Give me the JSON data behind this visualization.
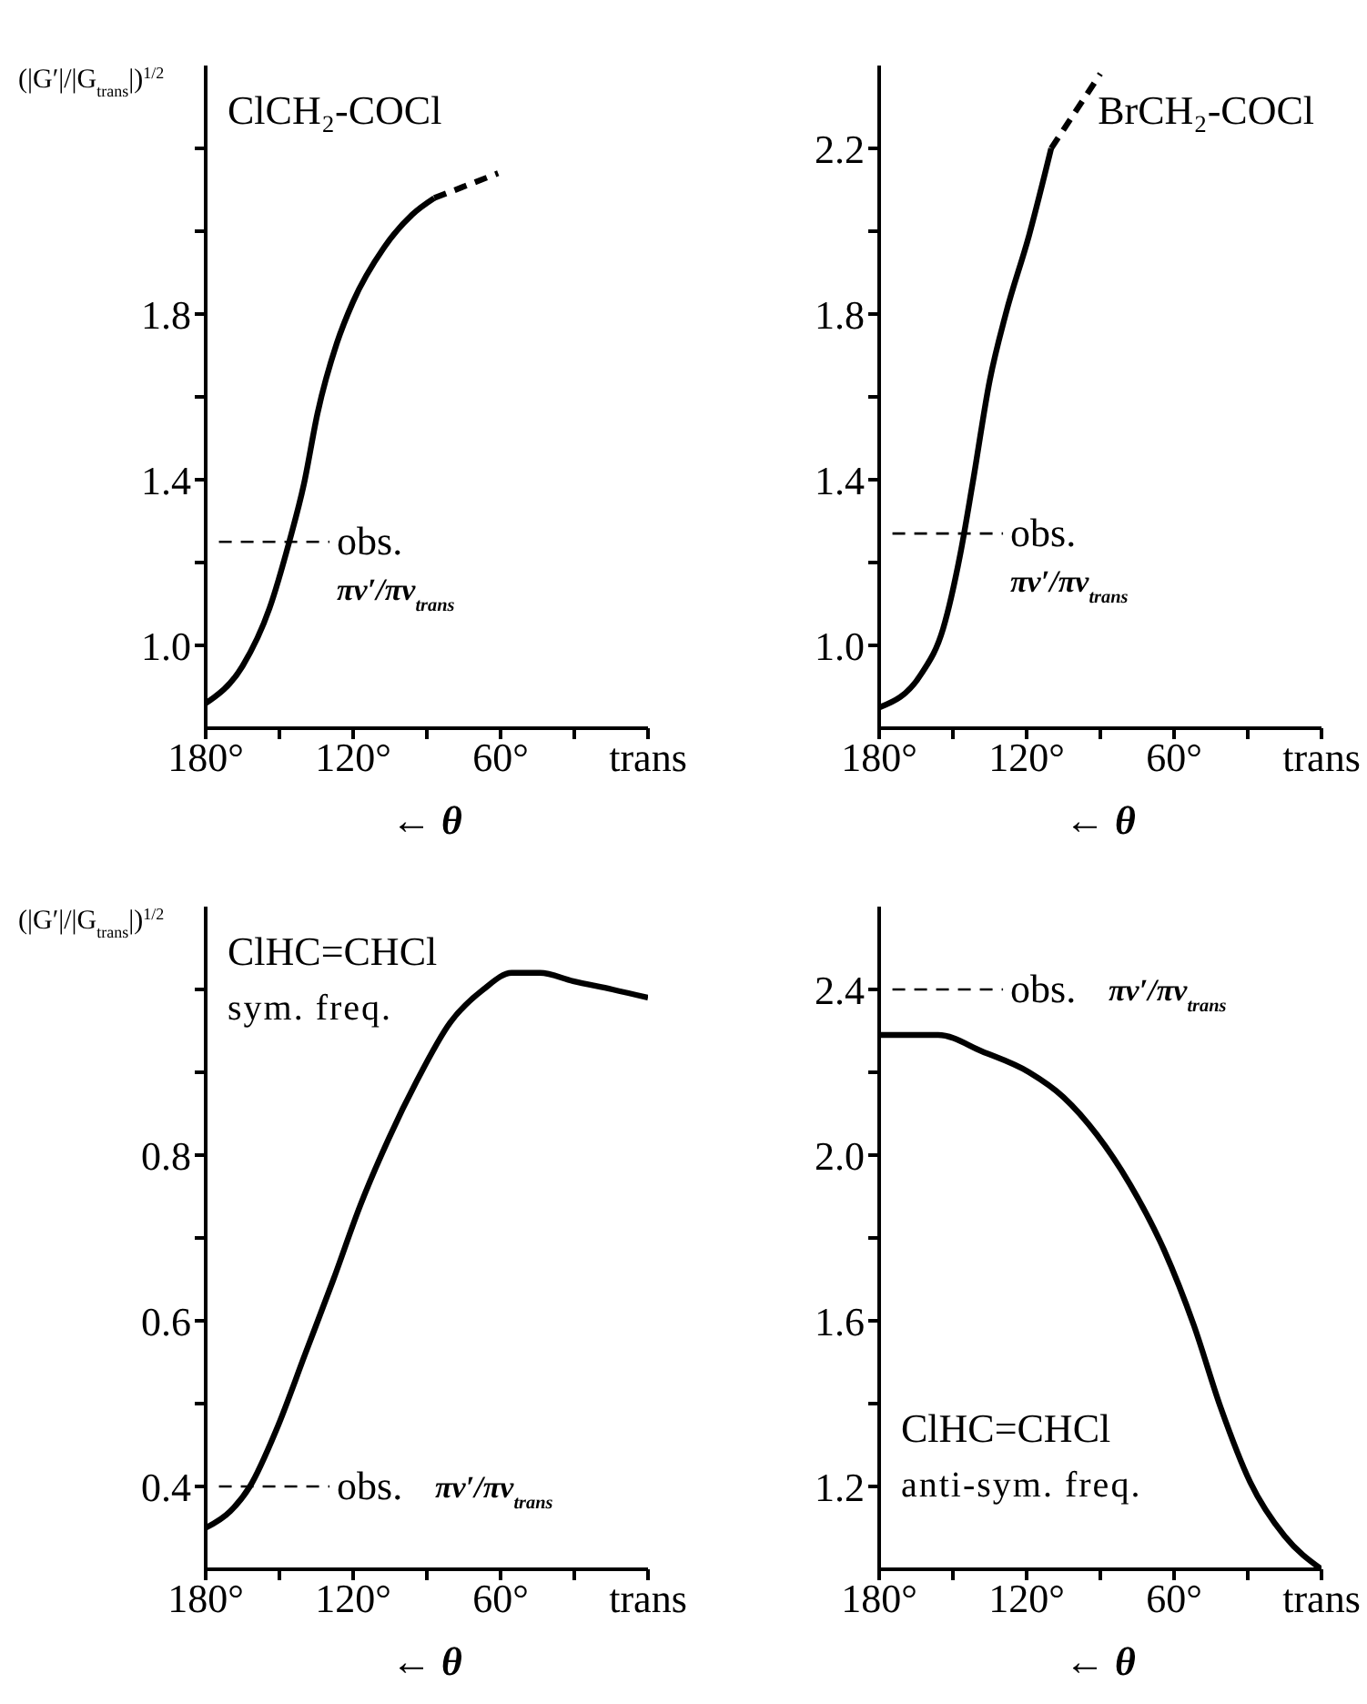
{
  "chart_data": [
    {
      "type": "line",
      "title": "ClCH₂-COCl",
      "ylabel": "(|G′|/|G$_{trans}$|)$^{1/2}$",
      "xlabel": "← θ",
      "annotations": [
        "πν′/πν$_{trans}$"
      ],
      "series": [
        {
          "color": "#000000",
          "line_style": "solid",
          "x": [
            180,
            165,
            154,
            146,
            140,
            134.5,
            126.6,
            120,
            107.5,
            96,
            87
          ],
          "values": [
            0.86,
            0.95,
            1.09,
            1.25,
            1.39,
            1.56,
            1.73,
            1.83,
            1.96,
            2.04,
            2.08
          ]
        },
        {
          "color": "#000000",
          "line_style": "dashed",
          "x": [
            87,
            61
          ],
          "values": [
            2.08,
            2.14
          ]
        }
      ],
      "xlim": [
        180,
        0
      ],
      "xticks": [
        {
          "value": 180,
          "label": "180°"
        },
        {
          "value": 150,
          "label": null
        },
        {
          "value": 120,
          "label": "120°"
        },
        {
          "value": 90,
          "label": null
        },
        {
          "value": 60,
          "label": "60°"
        },
        {
          "value": 30,
          "label": null
        },
        {
          "value": 0,
          "label": "trans"
        }
      ],
      "ylim": [
        0.8,
        2.4
      ],
      "yticks": [
        {
          "value": 1,
          "label": "1.0"
        },
        {
          "value": 1.2,
          "label": null
        },
        1.4,
        {
          "value": 1.6,
          "label": null
        },
        1.8,
        {
          "value": 2,
          "label": null
        },
        {
          "value": 2.2,
          "label": null
        }
      ],
      "ref_lines": [
        {
          "axis": "y",
          "value": 1.25,
          "label": "obs.",
          "line_style": "dashed"
        }
      ]
    },
    {
      "type": "line",
      "title": "BrCH₂-COCl",
      "xlabel": "← θ",
      "annotations": [
        "πν′/πν$_{trans}$"
      ],
      "series": [
        {
          "color": "#000000",
          "line_style": "solid",
          "x": [
            180,
            163,
            154,
            147,
            142,
            135,
            128.5,
            119,
            110
          ],
          "values": [
            0.85,
            0.93,
            1.04,
            1.22,
            1.39,
            1.64,
            1.8,
            1.99,
            2.2
          ]
        },
        {
          "color": "#000000",
          "line_style": "dashed",
          "x": [
            110,
            90
          ],
          "values": [
            2.2,
            2.38
          ]
        }
      ],
      "xlim": [
        180,
        0
      ],
      "xticks": [
        {
          "value": 180,
          "label": "180°"
        },
        {
          "value": 150,
          "label": null
        },
        {
          "value": 120,
          "label": "120°"
        },
        {
          "value": 90,
          "label": null
        },
        {
          "value": 60,
          "label": "60°"
        },
        {
          "value": 30,
          "label": null
        },
        {
          "value": 0,
          "label": "trans"
        }
      ],
      "ylim": [
        0.8,
        2.4
      ],
      "yticks": [
        {
          "value": 1,
          "label": "1.0"
        },
        {
          "value": 1.2,
          "label": null
        },
        1.4,
        {
          "value": 1.6,
          "label": null
        },
        1.8,
        {
          "value": 2,
          "label": null
        },
        2.2
      ],
      "ref_lines": [
        {
          "axis": "y",
          "value": 1.27,
          "label": "obs.",
          "line_style": "dashed"
        }
      ]
    },
    {
      "type": "line",
      "title": "ClHC=CHCl",
      "subtitle": "sym. freq.",
      "ylabel": "(|G′|/|G$_{trans}$|)$^{1/2}$",
      "xlabel": "← θ",
      "annotations": [
        "πν′/πν$_{trans}$"
      ],
      "series": [
        {
          "color": "#000000",
          "line_style": "solid",
          "x": [
            180,
            170,
            162,
            151,
            139.5,
            128,
            117,
            105.5,
            94,
            80.5,
            67,
            55.5,
            44,
            30.5,
            14.5,
            0
          ],
          "values": [
            0.35,
            0.37,
            0.4,
            0.47,
            0.56,
            0.65,
            0.74,
            0.82,
            0.89,
            0.96,
            1.0,
            1.02,
            1.02,
            1.01,
            1.0,
            0.99
          ]
        }
      ],
      "xlim": [
        180,
        0
      ],
      "xticks": [
        {
          "value": 180,
          "label": "180°"
        },
        {
          "value": 150,
          "label": null
        },
        {
          "value": 120,
          "label": "120°"
        },
        {
          "value": 90,
          "label": null
        },
        {
          "value": 60,
          "label": "60°"
        },
        {
          "value": 30,
          "label": null
        },
        {
          "value": 0,
          "label": "trans"
        }
      ],
      "ylim": [
        0.3,
        1.1
      ],
      "yticks": [
        0.4,
        {
          "value": 0.5,
          "label": null
        },
        0.6,
        {
          "value": 0.7,
          "label": null
        },
        0.8,
        {
          "value": 0.9,
          "label": null
        },
        {
          "value": 1,
          "label": null
        }
      ],
      "ref_lines": [
        {
          "axis": "y",
          "value": 0.4,
          "label": "obs.",
          "line_style": "dashed"
        }
      ]
    },
    {
      "type": "line",
      "title": "ClHC=CHCl",
      "subtitle": "anti-sym. freq.",
      "xlabel": "← θ",
      "annotations": [
        "πν′/πν$_{trans}$"
      ],
      "series": [
        {
          "color": "#000000",
          "line_style": "solid",
          "x": [
            180,
            156,
            138,
            119,
            105,
            91.5,
            78,
            64,
            52,
            41,
            29,
            15,
            0
          ],
          "values": [
            2.29,
            2.29,
            2.25,
            2.2,
            2.14,
            2.05,
            1.93,
            1.77,
            1.59,
            1.39,
            1.21,
            1.08,
            1.0
          ]
        }
      ],
      "xlim": [
        180,
        0
      ],
      "xticks": [
        {
          "value": 180,
          "label": "180°"
        },
        {
          "value": 150,
          "label": null
        },
        {
          "value": 120,
          "label": "120°"
        },
        {
          "value": 90,
          "label": null
        },
        {
          "value": 60,
          "label": "60°"
        },
        {
          "value": 30,
          "label": null
        },
        {
          "value": 0,
          "label": "trans"
        }
      ],
      "ylim": [
        1,
        2.6
      ],
      "yticks": [
        1.2,
        {
          "value": 1.4,
          "label": null
        },
        1.6,
        {
          "value": 1.8,
          "label": null
        },
        {
          "value": 2,
          "label": "2.0"
        },
        {
          "value": 2.2,
          "label": null
        },
        2.4
      ],
      "ref_lines": [
        {
          "axis": "y",
          "value": 2.4,
          "label": "obs.",
          "line_style": "dashed"
        }
      ]
    }
  ]
}
